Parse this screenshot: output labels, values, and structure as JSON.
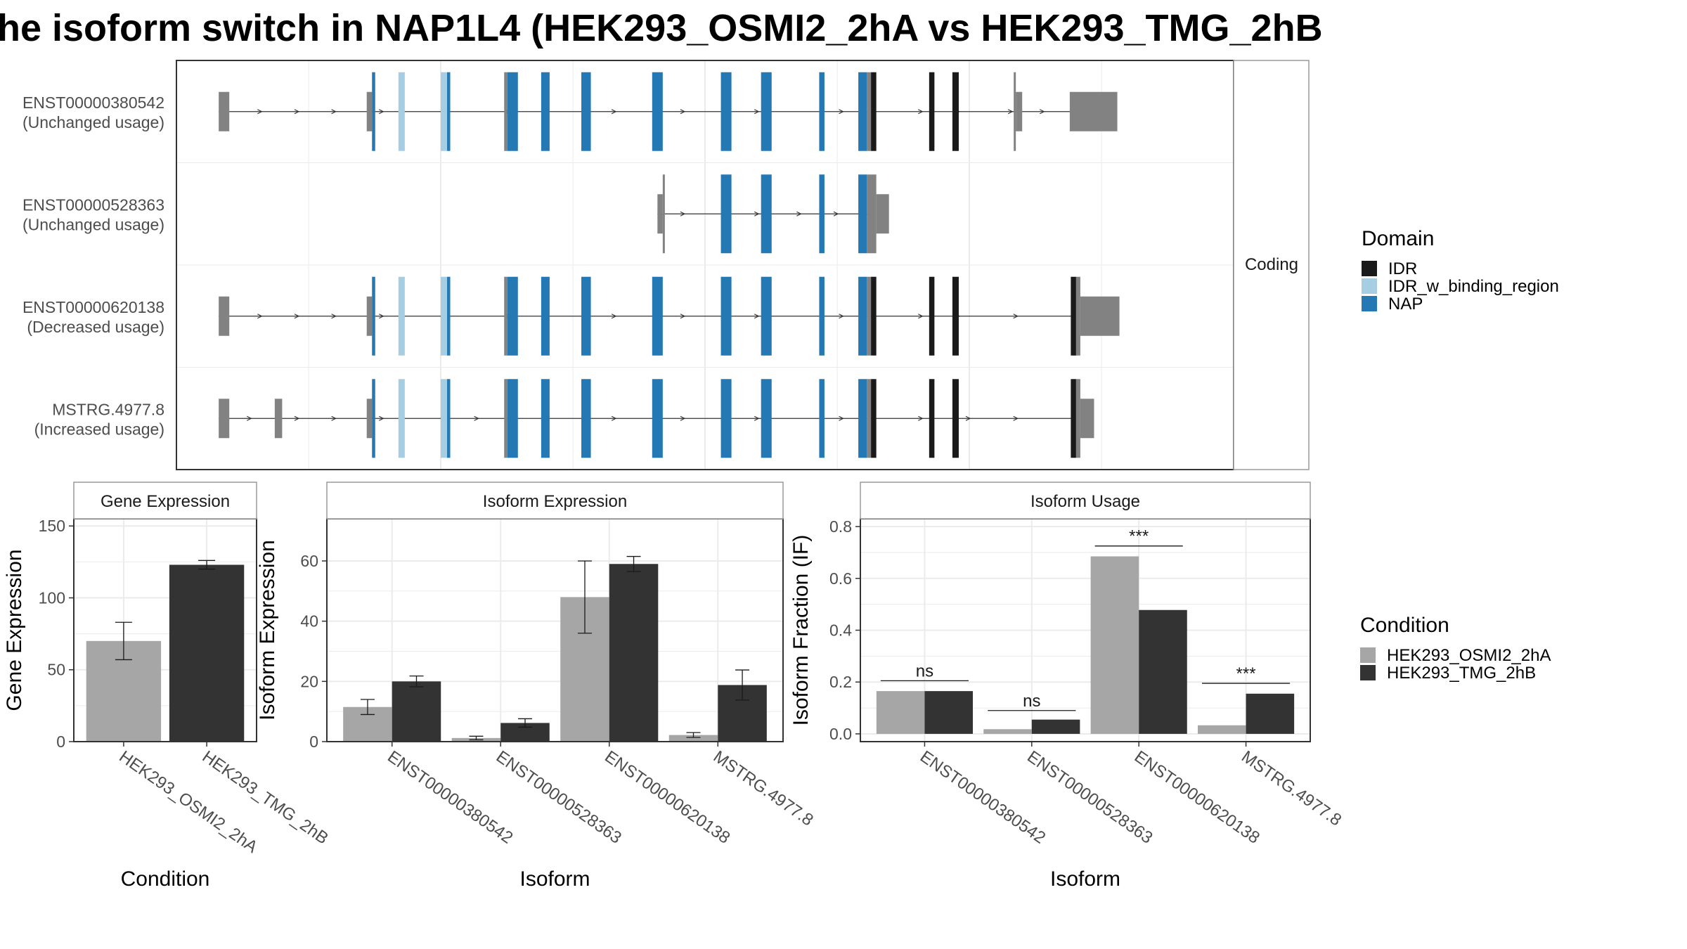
{
  "title": "he isoform switch in NAP1L4 (HEK293_OSMI2_2hA vs HEK293_TMG_2hB",
  "colors": {
    "idr": "#1a1a1a",
    "idr_binding": "#a6cde2",
    "nap": "#2479b5",
    "utr": "#828282",
    "cond_a": "#a6a6a6",
    "cond_b": "#333333",
    "grid": "#ebebeb",
    "panel_border": "#333333",
    "strip_border": "#9a9a9a"
  },
  "transcript_panel": {
    "facet_label": "Coding",
    "xlim": [
      0,
      100
    ],
    "transcripts": [
      {
        "id": "ENST00000380542",
        "status": "(Unchanged usage)",
        "intron": [
          4,
          86
        ],
        "arrows": [
          8,
          11.5,
          15,
          19.5,
          31.5,
          41.5,
          48,
          55,
          63,
          70.5,
          74,
          79,
          82,
          85
        ],
        "blocks": [
          {
            "s": 4,
            "e": 5,
            "h": "utr",
            "c": "utr"
          },
          {
            "s": 18,
            "e": 18.5,
            "h": "utr",
            "c": "utr"
          },
          {
            "s": 18.5,
            "e": 18.8,
            "h": "cds",
            "c": "nap"
          },
          {
            "s": 21,
            "e": 21.6,
            "h": "cds",
            "c": "idr_binding"
          },
          {
            "s": 25,
            "e": 25.6,
            "h": "cds",
            "c": "idr_binding"
          },
          {
            "s": 25.6,
            "e": 25.9,
            "h": "cds",
            "c": "nap"
          },
          {
            "s": 31,
            "e": 31.3,
            "h": "cds",
            "c": "utr"
          },
          {
            "s": 31.3,
            "e": 32.3,
            "h": "cds",
            "c": "nap"
          },
          {
            "s": 34.5,
            "e": 35.3,
            "h": "cds",
            "c": "nap"
          },
          {
            "s": 38.3,
            "e": 39.2,
            "h": "cds",
            "c": "nap"
          },
          {
            "s": 45,
            "e": 46,
            "h": "cds",
            "c": "nap"
          },
          {
            "s": 51.5,
            "e": 52.5,
            "h": "cds",
            "c": "nap"
          },
          {
            "s": 55.3,
            "e": 56.3,
            "h": "cds",
            "c": "nap"
          },
          {
            "s": 60.8,
            "e": 61.3,
            "h": "cds",
            "c": "nap"
          },
          {
            "s": 64.5,
            "e": 65.3,
            "h": "cds",
            "c": "nap"
          },
          {
            "s": 65.3,
            "e": 65.7,
            "h": "cds",
            "c": "utr"
          },
          {
            "s": 65.7,
            "e": 66.2,
            "h": "cds",
            "c": "idr"
          },
          {
            "s": 71.2,
            "e": 71.7,
            "h": "cds",
            "c": "idr"
          },
          {
            "s": 73.4,
            "e": 74,
            "h": "cds",
            "c": "idr"
          },
          {
            "s": 79.2,
            "e": 79.4,
            "h": "cds",
            "c": "utr"
          },
          {
            "s": 79.4,
            "e": 80,
            "h": "utr",
            "c": "utr"
          },
          {
            "s": 84.5,
            "e": 89,
            "h": "utr",
            "c": "utr"
          }
        ]
      },
      {
        "id": "ENST00000528363",
        "status": "(Unchanged usage)",
        "intron": [
          45.5,
          66
        ],
        "arrows": [
          48,
          55,
          59,
          62.5
        ],
        "blocks": [
          {
            "s": 45.5,
            "e": 46,
            "h": "utr",
            "c": "utr"
          },
          {
            "s": 46,
            "e": 46.2,
            "h": "cds",
            "c": "utr"
          },
          {
            "s": 51.5,
            "e": 52.5,
            "h": "cds",
            "c": "nap"
          },
          {
            "s": 55.3,
            "e": 56.3,
            "h": "cds",
            "c": "nap"
          },
          {
            "s": 60.8,
            "e": 61.3,
            "h": "cds",
            "c": "nap"
          },
          {
            "s": 64.5,
            "e": 65.3,
            "h": "cds",
            "c": "nap"
          },
          {
            "s": 65.3,
            "e": 66.2,
            "h": "cds",
            "c": "utr"
          },
          {
            "s": 66.2,
            "e": 67.4,
            "h": "utr",
            "c": "utr"
          }
        ]
      },
      {
        "id": "ENST00000620138",
        "status": "(Decreased usage)",
        "intron": [
          4,
          85
        ],
        "arrows": [
          8,
          11.5,
          15,
          19.5,
          31.5,
          41.5,
          48,
          55,
          63,
          70.5,
          74,
          79.5
        ],
        "blocks": [
          {
            "s": 4,
            "e": 5,
            "h": "utr",
            "c": "utr"
          },
          {
            "s": 18,
            "e": 18.5,
            "h": "utr",
            "c": "utr"
          },
          {
            "s": 18.5,
            "e": 18.8,
            "h": "cds",
            "c": "nap"
          },
          {
            "s": 21,
            "e": 21.6,
            "h": "cds",
            "c": "idr_binding"
          },
          {
            "s": 25,
            "e": 25.6,
            "h": "cds",
            "c": "idr_binding"
          },
          {
            "s": 25.6,
            "e": 25.9,
            "h": "cds",
            "c": "nap"
          },
          {
            "s": 31,
            "e": 31.3,
            "h": "cds",
            "c": "utr"
          },
          {
            "s": 31.3,
            "e": 32.3,
            "h": "cds",
            "c": "nap"
          },
          {
            "s": 34.5,
            "e": 35.3,
            "h": "cds",
            "c": "nap"
          },
          {
            "s": 38.3,
            "e": 39.2,
            "h": "cds",
            "c": "nap"
          },
          {
            "s": 45,
            "e": 46,
            "h": "cds",
            "c": "nap"
          },
          {
            "s": 51.5,
            "e": 52.5,
            "h": "cds",
            "c": "nap"
          },
          {
            "s": 55.3,
            "e": 56.3,
            "h": "cds",
            "c": "nap"
          },
          {
            "s": 60.8,
            "e": 61.3,
            "h": "cds",
            "c": "nap"
          },
          {
            "s": 64.5,
            "e": 65.3,
            "h": "cds",
            "c": "nap"
          },
          {
            "s": 65.3,
            "e": 65.7,
            "h": "cds",
            "c": "utr"
          },
          {
            "s": 65.7,
            "e": 66.2,
            "h": "cds",
            "c": "idr"
          },
          {
            "s": 71.2,
            "e": 71.7,
            "h": "cds",
            "c": "idr"
          },
          {
            "s": 73.4,
            "e": 74,
            "h": "cds",
            "c": "idr"
          },
          {
            "s": 84.6,
            "e": 85.1,
            "h": "cds",
            "c": "idr"
          },
          {
            "s": 85.1,
            "e": 85.5,
            "h": "cds",
            "c": "utr"
          },
          {
            "s": 85.5,
            "e": 89.2,
            "h": "utr",
            "c": "utr"
          }
        ]
      },
      {
        "id": "MSTRG.4977.8",
        "status": "(Increased usage)",
        "intron": [
          4,
          85
        ],
        "arrows": [
          7,
          11.5,
          15,
          19.5,
          28.5,
          41.5,
          48,
          55,
          63,
          70.5,
          75,
          79.5
        ],
        "blocks": [
          {
            "s": 4,
            "e": 5,
            "h": "utr",
            "c": "utr"
          },
          {
            "s": 9.3,
            "e": 10,
            "h": "utr",
            "c": "utr"
          },
          {
            "s": 18,
            "e": 18.5,
            "h": "utr",
            "c": "utr"
          },
          {
            "s": 18.5,
            "e": 18.8,
            "h": "cds",
            "c": "nap"
          },
          {
            "s": 21,
            "e": 21.6,
            "h": "cds",
            "c": "idr_binding"
          },
          {
            "s": 25,
            "e": 25.6,
            "h": "cds",
            "c": "idr_binding"
          },
          {
            "s": 25.6,
            "e": 25.9,
            "h": "cds",
            "c": "nap"
          },
          {
            "s": 31,
            "e": 31.3,
            "h": "cds",
            "c": "utr"
          },
          {
            "s": 31.3,
            "e": 32.3,
            "h": "cds",
            "c": "nap"
          },
          {
            "s": 34.5,
            "e": 35.3,
            "h": "cds",
            "c": "nap"
          },
          {
            "s": 38.3,
            "e": 39.2,
            "h": "cds",
            "c": "nap"
          },
          {
            "s": 45,
            "e": 46,
            "h": "cds",
            "c": "nap"
          },
          {
            "s": 51.5,
            "e": 52.5,
            "h": "cds",
            "c": "nap"
          },
          {
            "s": 55.3,
            "e": 56.3,
            "h": "cds",
            "c": "nap"
          },
          {
            "s": 60.8,
            "e": 61.3,
            "h": "cds",
            "c": "nap"
          },
          {
            "s": 64.5,
            "e": 65.3,
            "h": "cds",
            "c": "nap"
          },
          {
            "s": 65.3,
            "e": 65.7,
            "h": "cds",
            "c": "utr"
          },
          {
            "s": 65.7,
            "e": 66.2,
            "h": "cds",
            "c": "idr"
          },
          {
            "s": 71.2,
            "e": 71.7,
            "h": "cds",
            "c": "idr"
          },
          {
            "s": 73.4,
            "e": 74,
            "h": "cds",
            "c": "idr"
          },
          {
            "s": 84.6,
            "e": 85.1,
            "h": "cds",
            "c": "idr"
          },
          {
            "s": 85.1,
            "e": 85.5,
            "h": "cds",
            "c": "utr"
          },
          {
            "s": 85.5,
            "e": 86.8,
            "h": "utr",
            "c": "utr"
          }
        ]
      }
    ]
  },
  "legend_domain": {
    "title": "Domain",
    "items": [
      {
        "label": "IDR",
        "color_key": "idr"
      },
      {
        "label": "IDR_w_binding_region",
        "color_key": "idr_binding"
      },
      {
        "label": "NAP",
        "color_key": "nap"
      }
    ]
  },
  "legend_condition": {
    "title": "Condition",
    "items": [
      {
        "label": "HEK293_OSMI2_2hA",
        "color_key": "cond_a"
      },
      {
        "label": "HEK293_TMG_2hB",
        "color_key": "cond_b"
      }
    ]
  },
  "chart_data": [
    {
      "type": "bar",
      "strip": "Gene Expression",
      "xlabel": "Condition",
      "ylabel": "Gene Expression",
      "ylim": [
        0,
        155
      ],
      "yticks": [
        0,
        50,
        100,
        150
      ],
      "categories": [
        "HEK293_OSMI2_2hA",
        "HEK293_TMG_2hB"
      ],
      "series": [
        {
          "name": "HEK293_OSMI2_2hA",
          "color_key": "cond_a",
          "values": [
            70,
            null
          ],
          "err": [
            13,
            null
          ]
        },
        {
          "name": "HEK293_TMG_2hB",
          "color_key": "cond_b",
          "values": [
            null,
            123
          ],
          "err": [
            null,
            3
          ]
        }
      ]
    },
    {
      "type": "bar",
      "strip": "Isoform Expression",
      "xlabel": "Isoform",
      "ylabel": "Isoform Expression",
      "ylim": [
        0,
        74
      ],
      "yticks": [
        0,
        20,
        40,
        60
      ],
      "categories": [
        "ENST00000380542",
        "ENST00000528363",
        "ENST00000620138",
        "MSTRG.4977.8"
      ],
      "series": [
        {
          "name": "HEK293_OSMI2_2hA",
          "color_key": "cond_a",
          "values": [
            11.5,
            1.2,
            48,
            2.2
          ],
          "err": [
            2.5,
            0.6,
            12,
            0.8
          ]
        },
        {
          "name": "HEK293_TMG_2hB",
          "color_key": "cond_b",
          "values": [
            20,
            6.2,
            59,
            18.8
          ],
          "err": [
            1.8,
            1.4,
            2.5,
            5
          ]
        }
      ]
    },
    {
      "type": "bar",
      "strip": "Isoform Usage",
      "xlabel": "Isoform",
      "ylabel": "Isoform Fraction (IF)",
      "ylim": [
        -0.03,
        0.83
      ],
      "yticks": [
        0.0,
        0.2,
        0.4,
        0.6,
        0.8
      ],
      "tick_format": 1,
      "categories": [
        "ENST00000380542",
        "ENST00000528363",
        "ENST00000620138",
        "MSTRG.4977.8"
      ],
      "series": [
        {
          "name": "HEK293_OSMI2_2hA",
          "color_key": "cond_a",
          "values": [
            0.165,
            0.018,
            0.685,
            0.033
          ]
        },
        {
          "name": "HEK293_TMG_2hB",
          "color_key": "cond_b",
          "values": [
            0.165,
            0.055,
            0.478,
            0.155
          ]
        }
      ],
      "annotations": [
        {
          "category": 0,
          "label": "ns",
          "y": 0.205
        },
        {
          "category": 1,
          "label": "ns",
          "y": 0.09
        },
        {
          "category": 2,
          "label": "***",
          "y": 0.725
        },
        {
          "category": 3,
          "label": "***",
          "y": 0.195
        }
      ]
    }
  ]
}
